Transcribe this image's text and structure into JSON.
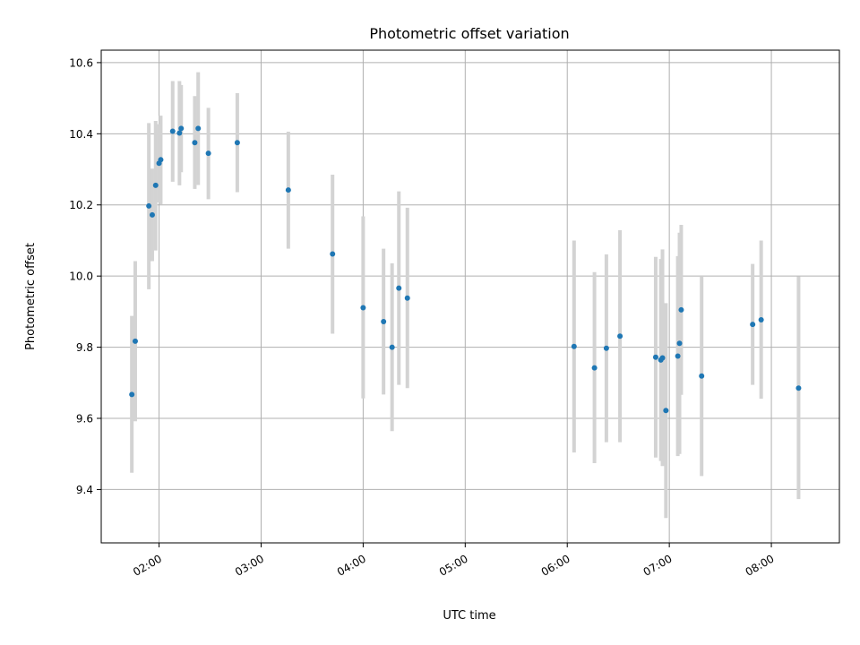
{
  "chart_data": {
    "type": "scatter",
    "title": "Photometric offset variation",
    "xlabel": "UTC time",
    "ylabel": "Photometric offset",
    "xlim": [
      "01:26",
      "08:40"
    ],
    "ylim": [
      9.25,
      10.635
    ],
    "grid": true,
    "xticks": [
      "02:00",
      "03:00",
      "04:00",
      "05:00",
      "06:00",
      "07:00",
      "08:00"
    ],
    "yticks": [
      9.4,
      9.6,
      9.8,
      10.0,
      10.2,
      10.4,
      10.6
    ],
    "points": [
      {
        "t": "01:44",
        "y": 9.667,
        "lo": 9.447,
        "hi": 9.888
      },
      {
        "t": "01:46",
        "y": 9.817,
        "lo": 9.592,
        "hi": 10.042
      },
      {
        "t": "01:54",
        "y": 10.197,
        "lo": 9.963,
        "hi": 10.43
      },
      {
        "t": "01:56",
        "y": 10.172,
        "lo": 10.042,
        "hi": 10.302
      },
      {
        "t": "01:58",
        "y": 10.255,
        "lo": 10.072,
        "hi": 10.436
      },
      {
        "t": "02:00",
        "y": 10.317,
        "lo": 10.207,
        "hi": 10.427
      },
      {
        "t": "02:01",
        "y": 10.327,
        "lo": 10.202,
        "hi": 10.451
      },
      {
        "t": "02:08",
        "y": 10.407,
        "lo": 10.265,
        "hi": 10.548
      },
      {
        "t": "02:12",
        "y": 10.402,
        "lo": 10.255,
        "hi": 10.548
      },
      {
        "t": "02:13",
        "y": 10.415,
        "lo": 10.292,
        "hi": 10.537
      },
      {
        "t": "02:21",
        "y": 10.375,
        "lo": 10.245,
        "hi": 10.506
      },
      {
        "t": "02:23",
        "y": 10.415,
        "lo": 10.256,
        "hi": 10.573
      },
      {
        "t": "02:29",
        "y": 10.345,
        "lo": 10.216,
        "hi": 10.473
      },
      {
        "t": "02:46",
        "y": 10.375,
        "lo": 10.236,
        "hi": 10.514
      },
      {
        "t": "03:16",
        "y": 10.242,
        "lo": 10.077,
        "hi": 10.406
      },
      {
        "t": "03:42",
        "y": 10.062,
        "lo": 9.838,
        "hi": 10.285
      },
      {
        "t": "04:00",
        "y": 9.911,
        "lo": 9.656,
        "hi": 10.168
      },
      {
        "t": "04:12",
        "y": 9.872,
        "lo": 9.667,
        "hi": 10.077
      },
      {
        "t": "04:17",
        "y": 9.8,
        "lo": 9.564,
        "hi": 10.036
      },
      {
        "t": "04:21",
        "y": 9.966,
        "lo": 9.694,
        "hi": 10.238
      },
      {
        "t": "04:26",
        "y": 9.938,
        "lo": 9.685,
        "hi": 10.192
      },
      {
        "t": "06:04",
        "y": 9.802,
        "lo": 9.504,
        "hi": 10.1
      },
      {
        "t": "06:16",
        "y": 9.742,
        "lo": 9.474,
        "hi": 10.011
      },
      {
        "t": "06:23",
        "y": 9.797,
        "lo": 9.533,
        "hi": 10.061
      },
      {
        "t": "06:31",
        "y": 9.831,
        "lo": 9.533,
        "hi": 10.129
      },
      {
        "t": "06:52",
        "y": 9.772,
        "lo": 9.49,
        "hi": 10.054
      },
      {
        "t": "06:55",
        "y": 9.764,
        "lo": 9.48,
        "hi": 10.048
      },
      {
        "t": "06:56",
        "y": 9.77,
        "lo": 9.466,
        "hi": 10.075
      },
      {
        "t": "06:58",
        "y": 9.622,
        "lo": 9.32,
        "hi": 9.924
      },
      {
        "t": "07:05",
        "y": 9.775,
        "lo": 9.494,
        "hi": 10.056
      },
      {
        "t": "07:06",
        "y": 9.811,
        "lo": 9.5,
        "hi": 10.122
      },
      {
        "t": "07:07",
        "y": 9.905,
        "lo": 9.666,
        "hi": 10.144
      },
      {
        "t": "07:19",
        "y": 9.719,
        "lo": 9.438,
        "hi": 10.0
      },
      {
        "t": "07:49",
        "y": 9.864,
        "lo": 9.694,
        "hi": 10.034
      },
      {
        "t": "07:54",
        "y": 9.877,
        "lo": 9.655,
        "hi": 10.1
      },
      {
        "t": "08:16",
        "y": 9.685,
        "lo": 9.373,
        "hi": 9.999
      }
    ]
  }
}
